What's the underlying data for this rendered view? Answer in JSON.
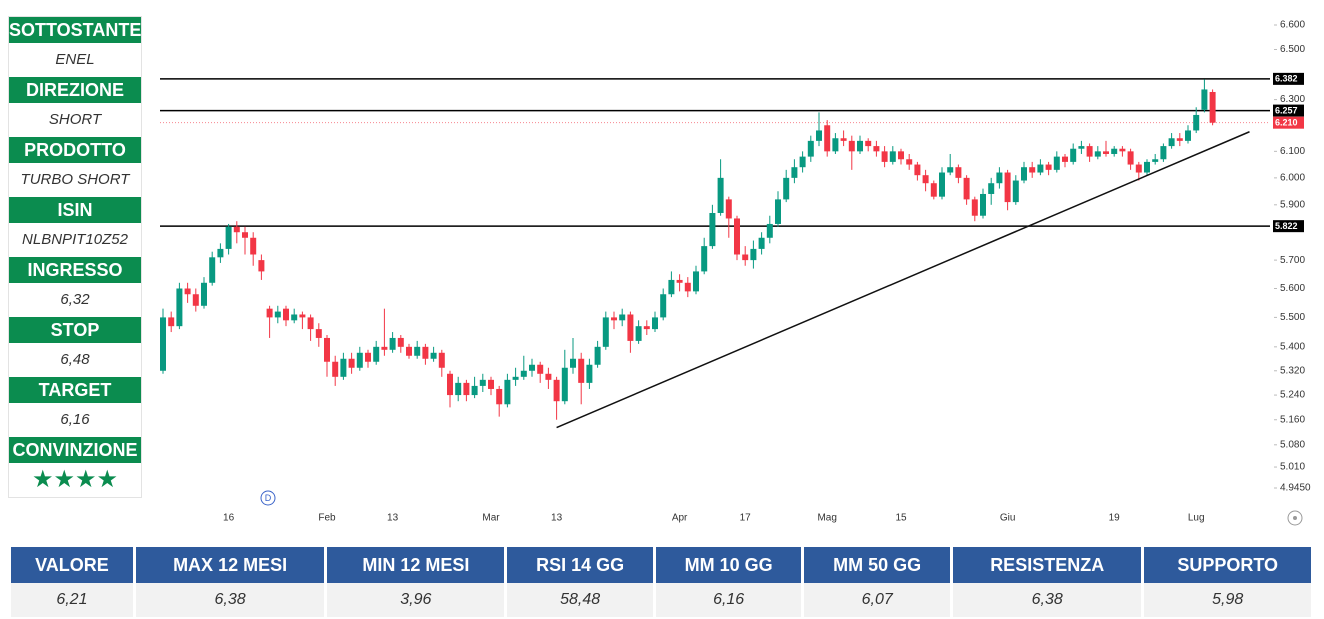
{
  "chart_data": {
    "type": "candlestick",
    "categories": [
      null,
      null,
      null,
      null,
      null,
      null,
      null,
      null,
      "16",
      null,
      null,
      null,
      null,
      null,
      null,
      null,
      null,
      null,
      null,
      null,
      "Feb",
      null,
      null,
      null,
      null,
      null,
      null,
      null,
      "13",
      null,
      null,
      null,
      null,
      null,
      null,
      null,
      null,
      null,
      null,
      null,
      "Mar",
      null,
      null,
      null,
      null,
      null,
      null,
      null,
      "13",
      null,
      null,
      null,
      null,
      null,
      null,
      null,
      null,
      null,
      null,
      null,
      null,
      null,
      null,
      "Apr",
      null,
      null,
      null,
      null,
      null,
      null,
      null,
      "17",
      null,
      null,
      null,
      null,
      null,
      null,
      null,
      null,
      null,
      "Mag",
      null,
      null,
      null,
      null,
      null,
      null,
      null,
      null,
      "15",
      null,
      null,
      null,
      null,
      null,
      null,
      null,
      null,
      null,
      null,
      null,
      null,
      "Giu",
      null,
      null,
      null,
      null,
      null,
      null,
      null,
      null,
      null,
      null,
      null,
      null,
      "19",
      null,
      null,
      null,
      null,
      null,
      null,
      null,
      null,
      null,
      "Lug",
      null,
      null
    ],
    "candles": [
      [
        5.32,
        5.53,
        5.31,
        5.5
      ],
      [
        5.5,
        5.52,
        5.45,
        5.47
      ],
      [
        5.47,
        5.62,
        5.46,
        5.6
      ],
      [
        5.6,
        5.62,
        5.55,
        5.58
      ],
      [
        5.58,
        5.6,
        5.52,
        5.54
      ],
      [
        5.54,
        5.64,
        5.53,
        5.62
      ],
      [
        5.62,
        5.73,
        5.61,
        5.71
      ],
      [
        5.71,
        5.76,
        5.69,
        5.74
      ],
      [
        5.74,
        5.83,
        5.72,
        5.82
      ],
      [
        5.82,
        5.84,
        5.76,
        5.8
      ],
      [
        5.8,
        5.82,
        5.72,
        5.78
      ],
      [
        5.78,
        5.8,
        5.68,
        5.72
      ],
      [
        5.7,
        5.72,
        5.63,
        5.66
      ],
      [
        5.53,
        5.54,
        5.43,
        5.5
      ],
      [
        5.5,
        5.54,
        5.48,
        5.52
      ],
      [
        5.53,
        5.54,
        5.47,
        5.49
      ],
      [
        5.49,
        5.53,
        5.48,
        5.51
      ],
      [
        5.51,
        5.52,
        5.46,
        5.5
      ],
      [
        5.5,
        5.51,
        5.42,
        5.46
      ],
      [
        5.46,
        5.48,
        5.4,
        5.43
      ],
      [
        5.43,
        5.44,
        5.3,
        5.35
      ],
      [
        5.35,
        5.37,
        5.27,
        5.3
      ],
      [
        5.3,
        5.38,
        5.29,
        5.36
      ],
      [
        5.36,
        5.38,
        5.31,
        5.33
      ],
      [
        5.33,
        5.4,
        5.32,
        5.38
      ],
      [
        5.38,
        5.39,
        5.33,
        5.35
      ],
      [
        5.35,
        5.42,
        5.34,
        5.4
      ],
      [
        5.4,
        5.53,
        5.37,
        5.39
      ],
      [
        5.39,
        5.45,
        5.38,
        5.43
      ],
      [
        5.43,
        5.44,
        5.38,
        5.4
      ],
      [
        5.4,
        5.41,
        5.36,
        5.37
      ],
      [
        5.37,
        5.42,
        5.36,
        5.4
      ],
      [
        5.4,
        5.41,
        5.34,
        5.36
      ],
      [
        5.36,
        5.4,
        5.35,
        5.38
      ],
      [
        5.38,
        5.39,
        5.3,
        5.33
      ],
      [
        5.31,
        5.32,
        5.2,
        5.24
      ],
      [
        5.24,
        5.3,
        5.22,
        5.28
      ],
      [
        5.28,
        5.29,
        5.22,
        5.24
      ],
      [
        5.24,
        5.3,
        5.23,
        5.27
      ],
      [
        5.27,
        5.31,
        5.25,
        5.29
      ],
      [
        5.29,
        5.3,
        5.24,
        5.26
      ],
      [
        5.26,
        5.27,
        5.17,
        5.21
      ],
      [
        5.21,
        5.31,
        5.2,
        5.29
      ],
      [
        5.29,
        5.33,
        5.27,
        5.3
      ],
      [
        5.3,
        5.37,
        5.29,
        5.32
      ],
      [
        5.32,
        5.36,
        5.3,
        5.34
      ],
      [
        5.34,
        5.35,
        5.28,
        5.31
      ],
      [
        5.31,
        5.33,
        5.26,
        5.29
      ],
      [
        5.29,
        5.3,
        5.16,
        5.22
      ],
      [
        5.22,
        5.39,
        5.21,
        5.33
      ],
      [
        5.33,
        5.43,
        5.31,
        5.36
      ],
      [
        5.36,
        5.38,
        5.21,
        5.28
      ],
      [
        5.28,
        5.36,
        5.26,
        5.34
      ],
      [
        5.34,
        5.42,
        5.33,
        5.4
      ],
      [
        5.4,
        5.52,
        5.39,
        5.5
      ],
      [
        5.5,
        5.52,
        5.46,
        5.49
      ],
      [
        5.49,
        5.53,
        5.47,
        5.51
      ],
      [
        5.51,
        5.52,
        5.38,
        5.42
      ],
      [
        5.42,
        5.49,
        5.41,
        5.47
      ],
      [
        5.47,
        5.49,
        5.44,
        5.46
      ],
      [
        5.46,
        5.52,
        5.45,
        5.5
      ],
      [
        5.5,
        5.6,
        5.49,
        5.58
      ],
      [
        5.58,
        5.66,
        5.57,
        5.63
      ],
      [
        5.63,
        5.65,
        5.59,
        5.62
      ],
      [
        5.62,
        5.64,
        5.57,
        5.59
      ],
      [
        5.59,
        5.68,
        5.58,
        5.66
      ],
      [
        5.66,
        5.78,
        5.65,
        5.75
      ],
      [
        5.75,
        5.9,
        5.74,
        5.87
      ],
      [
        5.87,
        6.07,
        5.86,
        6.0
      ],
      [
        5.92,
        5.93,
        5.78,
        5.85
      ],
      [
        5.85,
        5.86,
        5.7,
        5.72
      ],
      [
        5.72,
        5.75,
        5.68,
        5.7
      ],
      [
        5.7,
        5.77,
        5.67,
        5.74
      ],
      [
        5.74,
        5.8,
        5.72,
        5.78
      ],
      [
        5.78,
        5.86,
        5.76,
        5.83
      ],
      [
        5.83,
        5.95,
        5.82,
        5.92
      ],
      [
        5.92,
        6.03,
        5.91,
        6.0
      ],
      [
        6.0,
        6.07,
        5.98,
        6.04
      ],
      [
        6.04,
        6.1,
        6.02,
        6.08
      ],
      [
        6.08,
        6.16,
        6.06,
        6.14
      ],
      [
        6.14,
        6.25,
        6.12,
        6.18
      ],
      [
        6.2,
        6.22,
        6.08,
        6.1
      ],
      [
        6.1,
        6.17,
        6.09,
        6.15
      ],
      [
        6.15,
        6.18,
        6.12,
        6.14
      ],
      [
        6.14,
        6.16,
        6.03,
        6.1
      ],
      [
        6.1,
        6.16,
        6.09,
        6.14
      ],
      [
        6.14,
        6.15,
        6.1,
        6.12
      ],
      [
        6.12,
        6.14,
        6.08,
        6.1
      ],
      [
        6.1,
        6.12,
        6.04,
        6.06
      ],
      [
        6.06,
        6.12,
        6.05,
        6.1
      ],
      [
        6.1,
        6.11,
        6.05,
        6.07
      ],
      [
        6.07,
        6.09,
        6.03,
        6.05
      ],
      [
        6.05,
        6.06,
        5.99,
        6.01
      ],
      [
        6.01,
        6.03,
        5.95,
        5.98
      ],
      [
        5.98,
        5.99,
        5.92,
        5.93
      ],
      [
        5.93,
        6.04,
        5.92,
        6.02
      ],
      [
        6.02,
        6.09,
        6.01,
        6.04
      ],
      [
        6.04,
        6.05,
        5.98,
        6.0
      ],
      [
        6.0,
        6.01,
        5.9,
        5.92
      ],
      [
        5.92,
        5.93,
        5.84,
        5.86
      ],
      [
        5.86,
        5.96,
        5.85,
        5.94
      ],
      [
        5.94,
        6.0,
        5.9,
        5.98
      ],
      [
        5.98,
        6.04,
        5.96,
        6.02
      ],
      [
        6.02,
        6.03,
        5.88,
        5.91
      ],
      [
        5.91,
        6.01,
        5.9,
        5.99
      ],
      [
        5.99,
        6.06,
        5.98,
        6.04
      ],
      [
        6.04,
        6.06,
        6.0,
        6.02
      ],
      [
        6.02,
        6.07,
        6.01,
        6.05
      ],
      [
        6.05,
        6.06,
        6.01,
        6.03
      ],
      [
        6.03,
        6.1,
        6.02,
        6.08
      ],
      [
        6.08,
        6.09,
        6.04,
        6.06
      ],
      [
        6.06,
        6.13,
        6.05,
        6.11
      ],
      [
        6.11,
        6.14,
        6.09,
        6.12
      ],
      [
        6.12,
        6.13,
        6.06,
        6.08
      ],
      [
        6.08,
        6.12,
        6.07,
        6.1
      ],
      [
        6.1,
        6.14,
        6.08,
        6.09
      ],
      [
        6.09,
        6.12,
        6.08,
        6.11
      ],
      [
        6.11,
        6.12,
        6.08,
        6.1
      ],
      [
        6.1,
        6.11,
        6.03,
        6.05
      ],
      [
        6.05,
        6.06,
        5.99,
        6.02
      ],
      [
        6.02,
        6.07,
        6.01,
        6.06
      ],
      [
        6.06,
        6.09,
        6.05,
        6.07
      ],
      [
        6.07,
        6.13,
        6.06,
        6.12
      ],
      [
        6.12,
        6.17,
        6.11,
        6.15
      ],
      [
        6.15,
        6.17,
        6.12,
        6.14
      ],
      [
        6.14,
        6.2,
        6.13,
        6.18
      ],
      [
        6.18,
        6.27,
        6.17,
        6.24
      ],
      [
        6.26,
        6.38,
        6.25,
        6.34
      ],
      [
        6.33,
        6.34,
        6.2,
        6.21
      ]
    ],
    "up_color": "#089981",
    "down_color": "#f23645",
    "log_scale": true,
    "ylim": [
      4.945,
      6.6
    ],
    "yticks": [
      {
        "value": 6.6,
        "label": "6.600"
      },
      {
        "value": 6.5,
        "label": "6.500"
      },
      {
        "value": 6.3,
        "label": "6.300"
      },
      {
        "value": 6.1,
        "label": "6.100"
      },
      {
        "value": 6.0,
        "label": "6.000"
      },
      {
        "value": 5.9,
        "label": "5.900"
      },
      {
        "value": 5.7,
        "label": "5.700"
      },
      {
        "value": 5.6,
        "label": "5.600"
      },
      {
        "value": 5.5,
        "label": "5.500"
      },
      {
        "value": 5.4,
        "label": "5.400"
      },
      {
        "value": 5.32,
        "label": "5.320"
      },
      {
        "value": 5.24,
        "label": "5.240"
      },
      {
        "value": 5.16,
        "label": "5.160"
      },
      {
        "value": 5.08,
        "label": "5.080"
      },
      {
        "value": 5.01,
        "label": "5.010"
      },
      {
        "value": 4.945,
        "label": "4.9450"
      }
    ],
    "levels": [
      {
        "value": 6.382,
        "label": "6.382",
        "color": "#000000"
      },
      {
        "value": 6.257,
        "label": "6.257",
        "color": "#000000"
      },
      {
        "value": 5.822,
        "label": "5.822",
        "color": "#000000"
      }
    ],
    "last_price": {
      "value": 6.21,
      "label": "6.210",
      "color": "#f23645"
    },
    "trendline": {
      "x": [
        48,
        132.5
      ],
      "y": [
        5.135,
        6.175
      ]
    },
    "event_marker": "D"
  },
  "sidebar": [
    {
      "label": "SOTTOSTANTE",
      "value": "ENEL"
    },
    {
      "label": "DIREZIONE",
      "value": "SHORT"
    },
    {
      "label": "PRODOTTO",
      "value": "TURBO SHORT"
    },
    {
      "label": "ISIN",
      "value": "NLBNPIT10Z52"
    },
    {
      "label": "INGRESSO",
      "value": "6,32"
    },
    {
      "label": "STOP",
      "value": "6,48"
    },
    {
      "label": "TARGET",
      "value": "6,16"
    },
    {
      "label": "CONVINZIONE",
      "value": "★★★★"
    }
  ],
  "table": {
    "header": [
      "VALORE",
      "MAX 12 MESI",
      "MIN 12 MESI",
      "RSI 14 GG",
      "MM 10 GG",
      "MM 50 GG",
      "RESISTENZA",
      "SUPPORTO"
    ],
    "rows": [
      [
        "6,21",
        "6,38",
        "3,96",
        "58,48",
        "6,16",
        "6,07",
        "6,38",
        "5,98"
      ]
    ]
  }
}
